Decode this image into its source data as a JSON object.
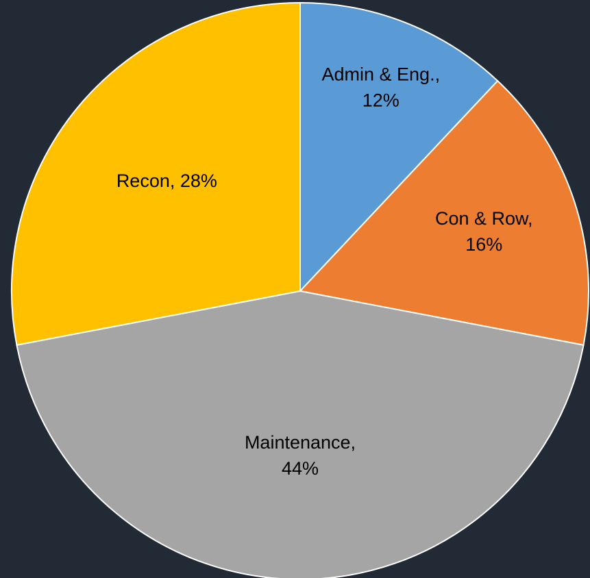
{
  "chart_data": {
    "type": "pie",
    "values": [
      12,
      16,
      44,
      28
    ],
    "value_labels": [
      [
        "Admin & Eng.,",
        "12%"
      ],
      [
        "Con & Row,",
        "16%"
      ],
      [
        "Maintenance,",
        "44%"
      ],
      [
        "Recon, 28%"
      ]
    ],
    "colors": [
      "#5b9bd5",
      "#ed7d31",
      "#a5a5a5",
      "#ffc000"
    ],
    "start_angle": 0,
    "direction": "clockwise"
  }
}
